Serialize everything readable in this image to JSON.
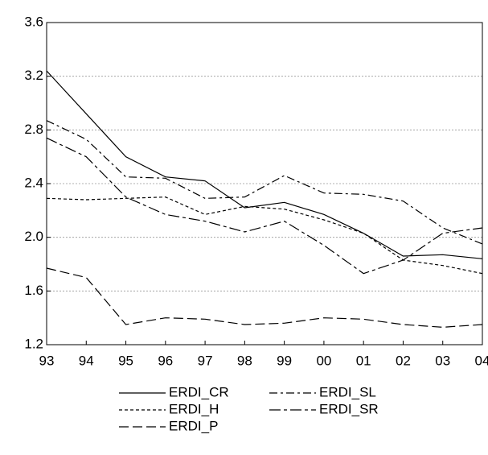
{
  "chart_data": {
    "type": "line",
    "categories": [
      "93",
      "94",
      "95",
      "96",
      "97",
      "98",
      "99",
      "00",
      "01",
      "02",
      "03",
      "04"
    ],
    "series": [
      {
        "name": "ERDI_CR",
        "color": "#000000",
        "values": [
          3.24,
          2.92,
          2.6,
          2.45,
          2.42,
          2.22,
          2.26,
          2.17,
          2.03,
          1.86,
          1.87,
          1.84
        ]
      },
      {
        "name": "ERDI_SL",
        "color": "#000000",
        "values": [
          2.87,
          2.73,
          2.45,
          2.44,
          2.29,
          2.3,
          2.46,
          2.33,
          2.32,
          2.27,
          2.07,
          1.95
        ]
      },
      {
        "name": "ERDI_H",
        "color": "#000000",
        "values": [
          2.29,
          2.28,
          2.29,
          2.3,
          2.17,
          2.23,
          2.21,
          2.13,
          2.03,
          1.83,
          1.79,
          1.73
        ]
      },
      {
        "name": "ERDI_SR",
        "color": "#000000",
        "values": [
          2.74,
          2.6,
          2.3,
          2.17,
          2.12,
          2.04,
          2.12,
          1.94,
          1.73,
          1.83,
          2.03,
          2.07
        ]
      },
      {
        "name": "ERDI_P",
        "color": "#000000",
        "values": [
          1.77,
          1.7,
          1.35,
          1.4,
          1.39,
          1.35,
          1.36,
          1.4,
          1.39,
          1.35,
          1.33,
          1.35
        ]
      }
    ],
    "ylim": [
      1.2,
      3.6
    ],
    "yticks": [
      1.2,
      1.6,
      {
        "value": 2,
        "label": "2.0"
      },
      2.4,
      2.8,
      3.2,
      3.6
    ],
    "grid": true
  }
}
